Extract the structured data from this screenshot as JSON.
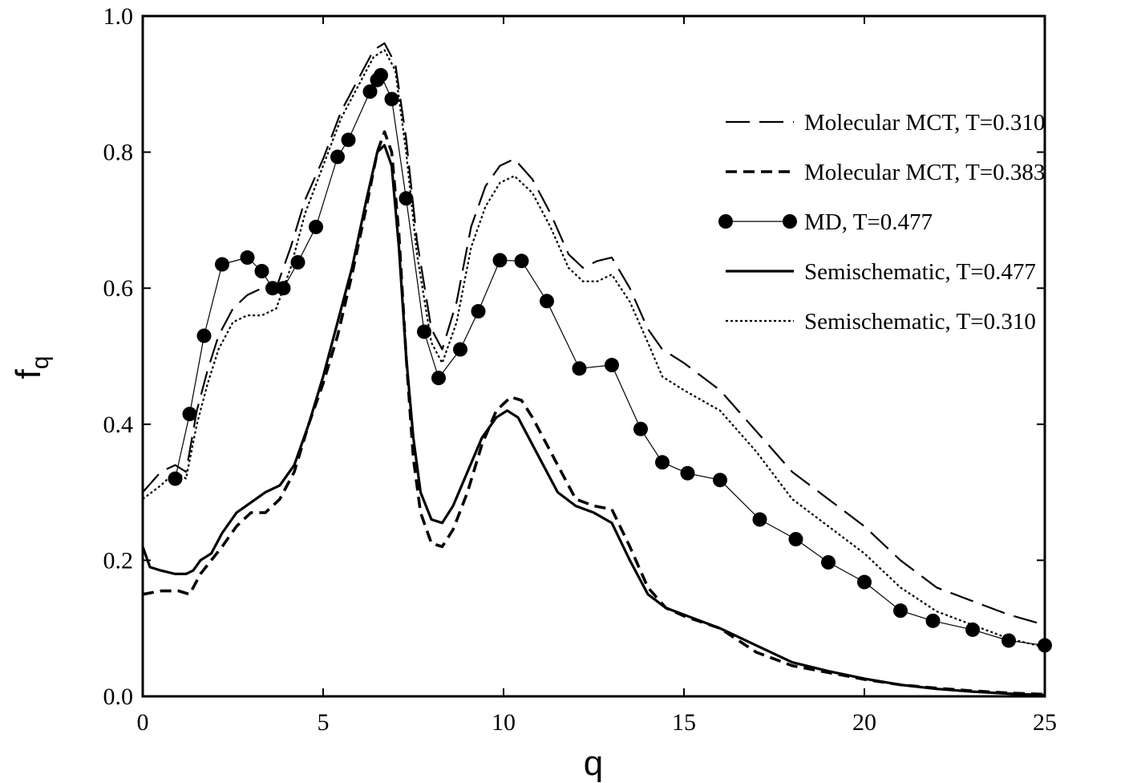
{
  "chart_data": {
    "type": "line",
    "xlabel": "q",
    "ylabel": "f",
    "ylabel_subscript": "q",
    "xlim": [
      0,
      25
    ],
    "ylim": [
      0,
      1
    ],
    "xticks": [
      0,
      5,
      10,
      15,
      20,
      25
    ],
    "yticks": [
      0,
      0.2,
      0.4,
      0.6,
      0.8,
      1.0
    ],
    "xtick_labels": [
      "0",
      "5",
      "10",
      "15",
      "20",
      "25"
    ],
    "ytick_labels": [
      "0.0",
      "0.2",
      "0.4",
      "0.6",
      "0.8",
      "1.0"
    ],
    "grid": false,
    "legend_position": "top-right",
    "series": [
      {
        "name": "Molecular MCT, T=0.310",
        "style": "long-dash",
        "x": [
          0,
          0.5,
          0.9,
          1.2,
          1.5,
          1.8,
          2.1,
          2.5,
          2.9,
          3.3,
          3.7,
          4.1,
          4.5,
          5.0,
          5.5,
          6.0,
          6.4,
          6.7,
          7.0,
          7.3,
          7.6,
          8.0,
          8.3,
          8.7,
          9.1,
          9.5,
          9.9,
          10.3,
          10.8,
          11.3,
          11.8,
          12.2,
          12.6,
          13.0,
          13.5,
          14.0,
          14.4,
          15.0,
          16.0,
          17.0,
          18.0,
          19.0,
          20.0,
          21.0,
          22.0,
          23.0,
          24.0,
          25.0
        ],
        "y": [
          0.3,
          0.33,
          0.34,
          0.33,
          0.42,
          0.48,
          0.53,
          0.57,
          0.59,
          0.6,
          0.6,
          0.66,
          0.73,
          0.79,
          0.86,
          0.91,
          0.95,
          0.96,
          0.93,
          0.82,
          0.67,
          0.54,
          0.51,
          0.58,
          0.69,
          0.75,
          0.78,
          0.79,
          0.76,
          0.71,
          0.65,
          0.63,
          0.64,
          0.645,
          0.6,
          0.54,
          0.51,
          0.49,
          0.45,
          0.39,
          0.33,
          0.29,
          0.25,
          0.2,
          0.16,
          0.14,
          0.12,
          0.105
        ]
      },
      {
        "name": "Molecular MCT, T=0.383",
        "style": "dash",
        "x": [
          0,
          0.5,
          1.0,
          1.3,
          1.6,
          1.9,
          2.2,
          2.6,
          3.0,
          3.4,
          3.8,
          4.2,
          4.6,
          5.0,
          5.4,
          5.8,
          6.2,
          6.5,
          6.7,
          6.9,
          7.1,
          7.3,
          7.5,
          7.7,
          8.0,
          8.3,
          8.6,
          9.0,
          9.4,
          9.8,
          10.2,
          10.5,
          10.8,
          11.2,
          11.6,
          12.0,
          12.5,
          13.0,
          13.5,
          14.0,
          14.5,
          15.0,
          16.0,
          17.0,
          18.0,
          19.0,
          20.0,
          21.0,
          22.0,
          23.0,
          24.0,
          25.0
        ],
        "y": [
          0.15,
          0.155,
          0.155,
          0.15,
          0.18,
          0.2,
          0.22,
          0.25,
          0.27,
          0.27,
          0.29,
          0.33,
          0.4,
          0.46,
          0.53,
          0.62,
          0.72,
          0.8,
          0.83,
          0.8,
          0.68,
          0.5,
          0.35,
          0.27,
          0.225,
          0.22,
          0.245,
          0.3,
          0.37,
          0.42,
          0.44,
          0.435,
          0.41,
          0.37,
          0.33,
          0.29,
          0.28,
          0.275,
          0.22,
          0.16,
          0.13,
          0.118,
          0.1,
          0.065,
          0.045,
          0.035,
          0.025,
          0.017,
          0.012,
          0.008,
          0.005,
          0.003
        ]
      },
      {
        "name": "MD, T=0.477",
        "style": "marker-line",
        "x": [
          0.9,
          1.3,
          1.7,
          2.2,
          2.9,
          3.3,
          3.6,
          3.9,
          4.3,
          4.8,
          5.4,
          5.7,
          6.3,
          6.5,
          6.6,
          6.9,
          7.3,
          7.8,
          8.2,
          8.8,
          9.3,
          9.9,
          10.5,
          11.2,
          12.1,
          13.0,
          13.8,
          14.4,
          15.1,
          16.0,
          17.1,
          18.1,
          19.0,
          20.0,
          21.0,
          21.9,
          23.0,
          24.0,
          25.0
        ],
        "y": [
          0.32,
          0.415,
          0.53,
          0.635,
          0.645,
          0.625,
          0.6,
          0.6,
          0.638,
          0.69,
          0.793,
          0.818,
          0.889,
          0.906,
          0.913,
          0.878,
          0.732,
          0.536,
          0.468,
          0.51,
          0.566,
          0.641,
          0.64,
          0.581,
          0.482,
          0.487,
          0.393,
          0.344,
          0.328,
          0.318,
          0.26,
          0.231,
          0.197,
          0.168,
          0.126,
          0.111,
          0.098,
          0.082,
          0.075
        ]
      },
      {
        "name": "Semischematic, T=0.477",
        "style": "solid",
        "x": [
          0,
          0.2,
          0.5,
          0.9,
          1.2,
          1.4,
          1.6,
          1.9,
          2.2,
          2.6,
          3.0,
          3.4,
          3.8,
          4.2,
          4.6,
          5.0,
          5.4,
          5.8,
          6.2,
          6.5,
          6.7,
          6.9,
          7.1,
          7.3,
          7.5,
          7.7,
          8.0,
          8.3,
          8.6,
          9.0,
          9.4,
          9.8,
          10.1,
          10.4,
          10.7,
          11.1,
          11.5,
          12.0,
          12.5,
          13.0,
          13.5,
          14.0,
          14.5,
          15.0,
          16.0,
          17.0,
          18.0,
          19.0,
          20.0,
          21.0,
          22.0,
          23.0,
          24.0,
          25.0
        ],
        "y": [
          0.22,
          0.19,
          0.185,
          0.18,
          0.18,
          0.185,
          0.2,
          0.21,
          0.24,
          0.27,
          0.285,
          0.3,
          0.31,
          0.34,
          0.4,
          0.47,
          0.55,
          0.63,
          0.73,
          0.8,
          0.81,
          0.78,
          0.66,
          0.5,
          0.38,
          0.3,
          0.26,
          0.255,
          0.28,
          0.33,
          0.38,
          0.41,
          0.42,
          0.41,
          0.38,
          0.34,
          0.3,
          0.28,
          0.27,
          0.255,
          0.2,
          0.15,
          0.13,
          0.12,
          0.1,
          0.075,
          0.05,
          0.037,
          0.026,
          0.017,
          0.011,
          0.007,
          0.004,
          0.002
        ]
      },
      {
        "name": "Semischematic, T=0.310",
        "style": "dotted",
        "x": [
          0,
          0.5,
          0.9,
          1.2,
          1.5,
          1.8,
          2.1,
          2.5,
          2.9,
          3.3,
          3.7,
          4.1,
          4.5,
          5.0,
          5.5,
          6.0,
          6.4,
          6.7,
          7.0,
          7.3,
          7.6,
          8.0,
          8.3,
          8.7,
          9.1,
          9.5,
          9.9,
          10.3,
          10.8,
          11.3,
          11.8,
          12.2,
          12.6,
          13.0,
          13.5,
          14.0,
          14.4,
          15.0,
          16.0,
          17.0,
          18.0,
          19.0,
          20.0,
          21.0,
          22.0,
          23.0,
          24.0,
          25.0
        ],
        "y": [
          0.29,
          0.31,
          0.33,
          0.32,
          0.4,
          0.46,
          0.51,
          0.55,
          0.56,
          0.56,
          0.57,
          0.63,
          0.71,
          0.78,
          0.85,
          0.9,
          0.94,
          0.95,
          0.92,
          0.8,
          0.65,
          0.52,
          0.49,
          0.55,
          0.66,
          0.72,
          0.755,
          0.765,
          0.74,
          0.69,
          0.63,
          0.61,
          0.61,
          0.62,
          0.58,
          0.52,
          0.47,
          0.45,
          0.42,
          0.36,
          0.29,
          0.25,
          0.21,
          0.16,
          0.125,
          0.105,
          0.085,
          0.072
        ]
      }
    ]
  }
}
